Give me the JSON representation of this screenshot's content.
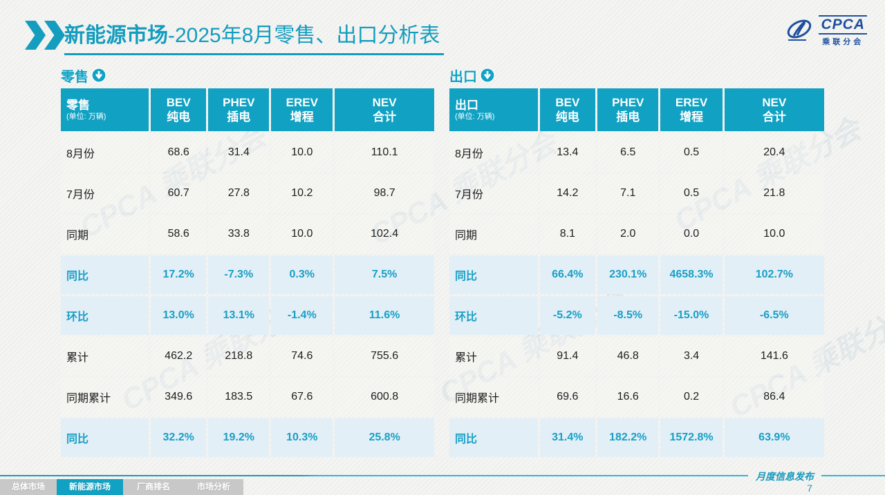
{
  "header": {
    "title_primary": "新能源市场",
    "title_secondary": "-2025年8月零售、出口分析表",
    "logo": {
      "acronym": "CPCA",
      "name": "乘联分会"
    }
  },
  "watermark_text": "CPCA 乘联分会",
  "tables": [
    {
      "section_label": "零售",
      "corner_title": "零售",
      "corner_unit": "(单位: 万辆)",
      "columns": [
        {
          "en": "BEV",
          "cn": "纯电"
        },
        {
          "en": "PHEV",
          "cn": "插电"
        },
        {
          "en": "EREV",
          "cn": "增程"
        },
        {
          "en": "NEV",
          "cn": "合计"
        }
      ],
      "rows": [
        {
          "label": "8月份",
          "type": "data",
          "values": [
            "68.6",
            "31.4",
            "10.0",
            "110.1"
          ]
        },
        {
          "label": "7月份",
          "type": "data",
          "values": [
            "60.7",
            "27.8",
            "10.2",
            "98.7"
          ]
        },
        {
          "label": "同期",
          "type": "data",
          "values": [
            "58.6",
            "33.8",
            "10.0",
            "102.4"
          ]
        },
        {
          "label": "同比",
          "type": "percent",
          "values": [
            "17.2%",
            "-7.3%",
            "0.3%",
            "7.5%"
          ]
        },
        {
          "label": "环比",
          "type": "percent",
          "values": [
            "13.0%",
            "13.1%",
            "-1.4%",
            "11.6%"
          ]
        },
        {
          "label": "累计",
          "type": "data",
          "values": [
            "462.2",
            "218.8",
            "74.6",
            "755.6"
          ]
        },
        {
          "label": "同期累计",
          "type": "data",
          "values": [
            "349.6",
            "183.5",
            "67.6",
            "600.8"
          ]
        },
        {
          "label": "同比",
          "type": "percent",
          "values": [
            "32.2%",
            "19.2%",
            "10.3%",
            "25.8%"
          ]
        }
      ]
    },
    {
      "section_label": "出口",
      "corner_title": "出口",
      "corner_unit": "(单位: 万辆)",
      "columns": [
        {
          "en": "BEV",
          "cn": "纯电"
        },
        {
          "en": "PHEV",
          "cn": "插电"
        },
        {
          "en": "EREV",
          "cn": "增程"
        },
        {
          "en": "NEV",
          "cn": "合计"
        }
      ],
      "rows": [
        {
          "label": "8月份",
          "type": "data",
          "values": [
            "13.4",
            "6.5",
            "0.5",
            "20.4"
          ]
        },
        {
          "label": "7月份",
          "type": "data",
          "values": [
            "14.2",
            "7.1",
            "0.5",
            "21.8"
          ]
        },
        {
          "label": "同期",
          "type": "data",
          "values": [
            "8.1",
            "2.0",
            "0.0",
            "10.0"
          ]
        },
        {
          "label": "同比",
          "type": "percent",
          "values": [
            "66.4%",
            "230.1%",
            "4658.3%",
            "102.7%"
          ]
        },
        {
          "label": "环比",
          "type": "percent",
          "values": [
            "-5.2%",
            "-8.5%",
            "-15.0%",
            "-6.5%"
          ]
        },
        {
          "label": "累计",
          "type": "data",
          "values": [
            "91.4",
            "46.8",
            "3.4",
            "141.6"
          ]
        },
        {
          "label": "同期累计",
          "type": "data",
          "values": [
            "69.6",
            "16.6",
            "0.2",
            "86.4"
          ]
        },
        {
          "label": "同比",
          "type": "percent",
          "values": [
            "31.4%",
            "182.2%",
            "1572.8%",
            "63.9%"
          ]
        }
      ]
    }
  ],
  "footer": {
    "tabs": [
      {
        "label": "总体市场",
        "active": false
      },
      {
        "label": "新能源市场",
        "active": true
      },
      {
        "label": "厂商排名",
        "active": false
      },
      {
        "label": "市场分析",
        "active": false
      }
    ],
    "note": "月度信息发布",
    "page_number": "7"
  },
  "colors": {
    "teal": "#10a1c3",
    "percent_row_bg": "#e3eff7",
    "logo_blue": "#1e4f9f"
  }
}
